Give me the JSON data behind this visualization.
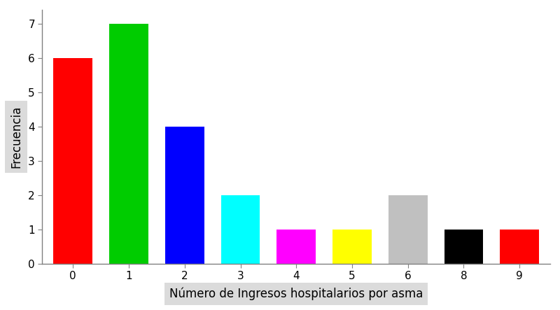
{
  "categories": [
    "0",
    "1",
    "2",
    "3",
    "4",
    "5",
    "6",
    "8",
    "9"
  ],
  "values": [
    6,
    7,
    4,
    2,
    1,
    1,
    2,
    1,
    1
  ],
  "bar_colors": [
    "#ff0000",
    "#00cc00",
    "#0000ff",
    "#00ffff",
    "#ff00ff",
    "#ffff00",
    "#c0c0c0",
    "#000000",
    "#ff0000"
  ],
  "xlabel": "Número de Ingresos hospitalarios por asma",
  "ylabel": "Frecuencia",
  "ylim": [
    0,
    7.4
  ],
  "yticks": [
    0,
    1,
    2,
    3,
    4,
    5,
    6,
    7
  ],
  "background_color": "#ffffff",
  "bar_width": 0.7,
  "xlabel_fontsize": 12,
  "ylabel_fontsize": 12,
  "tick_fontsize": 11,
  "label_bg_color": "#d3d3d3"
}
